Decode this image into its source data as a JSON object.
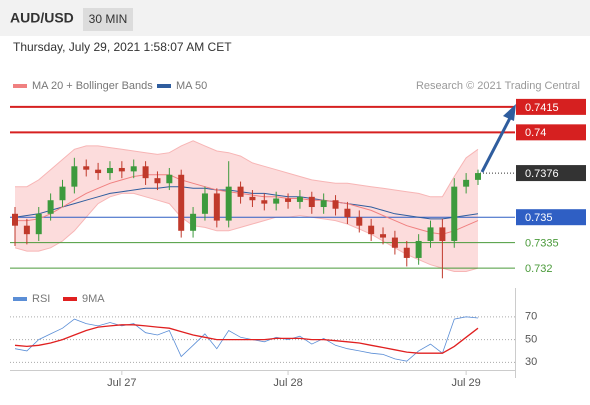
{
  "chart_data": {
    "type": "candlestick",
    "symbol": "AUD/USD",
    "timeframe": "30 MIN",
    "timestamp": "Thursday, July 29, 2021 1:58:07 AM CET",
    "credit": "Research © 2021 Trading Central",
    "ylim": [
      0.7313,
      0.7422
    ],
    "up_color": "#3d9a3d",
    "down_color": "#c0392b",
    "categories": [
      null,
      null,
      null,
      null,
      null,
      null,
      null,
      null,
      null,
      "Jul 27",
      null,
      null,
      null,
      null,
      null,
      null,
      null,
      null,
      null,
      null,
      null,
      null,
      null,
      "Jul 28",
      null,
      null,
      null,
      null,
      null,
      null,
      null,
      null,
      null,
      null,
      null,
      null,
      null,
      null,
      "Jul 29",
      null
    ],
    "open": [
      0.7352,
      0.7345,
      0.734,
      0.7352,
      0.736,
      0.7368,
      0.738,
      0.7378,
      0.7376,
      0.7379,
      0.7377,
      0.738,
      0.7373,
      0.737,
      0.7375,
      0.7342,
      0.7352,
      0.7364,
      0.7348,
      0.7368,
      0.7362,
      0.736,
      0.7358,
      0.7361,
      0.7359,
      0.7362,
      0.7356,
      0.736,
      0.7355,
      0.735,
      0.7345,
      0.734,
      0.7338,
      0.7332,
      0.7326,
      0.7336,
      0.7344,
      0.7336,
      0.7368,
      0.7372
    ],
    "high": [
      0.7356,
      0.7349,
      0.7356,
      0.7364,
      0.7372,
      0.7385,
      0.7384,
      0.7382,
      0.7383,
      0.7383,
      0.7384,
      0.7383,
      0.7377,
      0.7379,
      0.7378,
      0.7356,
      0.7368,
      0.7367,
      0.7383,
      0.7371,
      0.7366,
      0.7364,
      0.7365,
      0.7364,
      0.7366,
      0.7365,
      0.7364,
      0.7363,
      0.7359,
      0.7354,
      0.7349,
      0.7344,
      0.7342,
      0.7336,
      0.734,
      0.7348,
      0.7349,
      0.7373,
      0.7376,
      0.7378
    ],
    "low": [
      0.7333,
      0.7334,
      0.7336,
      0.7348,
      0.7356,
      0.7364,
      0.7374,
      0.7372,
      0.7372,
      0.7373,
      0.7373,
      0.7369,
      0.7366,
      0.7366,
      0.7338,
      0.7338,
      0.7348,
      0.7344,
      0.7344,
      0.7358,
      0.7356,
      0.7354,
      0.7354,
      0.7355,
      0.7355,
      0.7352,
      0.7352,
      0.7351,
      0.7346,
      0.7341,
      0.7336,
      0.7334,
      0.7328,
      0.7321,
      0.7322,
      0.7332,
      0.7314,
      0.7332,
      0.7364,
      0.7369
    ],
    "close": [
      0.7345,
      0.734,
      0.7352,
      0.736,
      0.7368,
      0.738,
      0.7378,
      0.7376,
      0.7379,
      0.7377,
      0.738,
      0.7373,
      0.737,
      0.7375,
      0.7342,
      0.7352,
      0.7364,
      0.7348,
      0.7368,
      0.7362,
      0.736,
      0.7358,
      0.7361,
      0.7359,
      0.7362,
      0.7356,
      0.736,
      0.7355,
      0.735,
      0.7345,
      0.734,
      0.7338,
      0.7332,
      0.7326,
      0.7336,
      0.7344,
      0.7336,
      0.7368,
      0.7372,
      0.7376
    ],
    "ma20": {
      "name": "MA 20 + Bollinger Bands",
      "color": "#f08080",
      "band_color": "#fcdcdc",
      "values": [
        0.7348,
        0.7348,
        0.7349,
        0.7352,
        0.7356,
        0.736,
        0.7364,
        0.7367,
        0.737,
        0.7372,
        0.7374,
        0.7375,
        0.7375,
        0.7375,
        0.7372,
        0.737,
        0.7368,
        0.7366,
        0.7365,
        0.7364,
        0.7363,
        0.7362,
        0.7362,
        0.7361,
        0.7361,
        0.736,
        0.736,
        0.7359,
        0.7358,
        0.7356,
        0.7354,
        0.7351,
        0.7348,
        0.7345,
        0.7343,
        0.7341,
        0.734,
        0.7342,
        0.7345,
        0.7348
      ],
      "upper": [
        0.7368,
        0.7368,
        0.7372,
        0.7378,
        0.7384,
        0.739,
        0.7392,
        0.7392,
        0.7391,
        0.739,
        0.7389,
        0.7388,
        0.7387,
        0.7388,
        0.7392,
        0.7395,
        0.7392,
        0.7389,
        0.7388,
        0.7386,
        0.7382,
        0.738,
        0.7378,
        0.7376,
        0.7374,
        0.7372,
        0.7371,
        0.737,
        0.737,
        0.7369,
        0.7368,
        0.7367,
        0.7366,
        0.7365,
        0.7364,
        0.7362,
        0.7362,
        0.7374,
        0.7385,
        0.739
      ],
      "lower": [
        0.7332,
        0.733,
        0.733,
        0.7332,
        0.7336,
        0.7342,
        0.735,
        0.7358,
        0.7362,
        0.7364,
        0.7364,
        0.7362,
        0.736,
        0.7358,
        0.735,
        0.7345,
        0.7344,
        0.7342,
        0.7342,
        0.7344,
        0.7346,
        0.7348,
        0.735,
        0.735,
        0.7351,
        0.735,
        0.7349,
        0.7348,
        0.7346,
        0.7343,
        0.734,
        0.7336,
        0.7332,
        0.7328,
        0.7325,
        0.7322,
        0.732,
        0.7318,
        0.7318,
        0.732
      ]
    },
    "ma50": {
      "name": "MA 50",
      "color": "#2f5d9e",
      "values": [
        0.735,
        0.7351,
        0.7352,
        0.7354,
        0.7356,
        0.7358,
        0.736,
        0.7362,
        0.7364,
        0.7365,
        0.7366,
        0.7367,
        0.7367,
        0.7368,
        0.7368,
        0.7367,
        0.7367,
        0.7366,
        0.7366,
        0.7365,
        0.7364,
        0.7364,
        0.7363,
        0.7362,
        0.7362,
        0.7361,
        0.736,
        0.7359,
        0.7358,
        0.7357,
        0.7356,
        0.7354,
        0.7352,
        0.7351,
        0.735,
        0.7349,
        0.7349,
        0.735,
        0.7351,
        0.7352
      ]
    },
    "levels": [
      {
        "value": 0.7415,
        "color": "#d62020",
        "style": "solid",
        "box": true
      },
      {
        "value": 0.74,
        "color": "#d62020",
        "style": "solid",
        "box": true
      },
      {
        "value": 0.7376,
        "color": "#333333",
        "style": "dotted",
        "box": true
      },
      {
        "value": 0.735,
        "color": "#2f5fc4",
        "style": "solid",
        "box": true
      },
      {
        "value": 0.7335,
        "color": "#4a9a3a",
        "style": "solid",
        "box": false
      },
      {
        "value": 0.732,
        "color": "#4a9a3a",
        "style": "solid",
        "box": false
      }
    ],
    "rsi": {
      "ylim": [
        25,
        76
      ],
      "yticks": [
        70,
        50,
        30
      ],
      "series": [
        {
          "name": "RSI",
          "color": "#5b8ed6",
          "values": [
            42,
            40,
            50,
            55,
            60,
            68,
            64,
            62,
            65,
            62,
            64,
            56,
            54,
            58,
            35,
            45,
            55,
            42,
            58,
            52,
            50,
            48,
            52,
            50,
            53,
            46,
            51,
            45,
            42,
            40,
            38,
            37,
            33,
            31,
            40,
            46,
            38,
            68,
            70,
            69
          ]
        },
        {
          "name": "9MA",
          "color": "#e02020",
          "values": [
            45,
            44,
            45,
            47,
            50,
            54,
            58,
            61,
            62,
            63,
            63,
            62,
            61,
            60,
            57,
            54,
            52,
            50,
            50,
            50,
            50,
            50,
            51,
            51,
            51,
            50,
            50,
            49,
            48,
            47,
            45,
            43,
            41,
            39,
            38,
            38,
            38,
            44,
            52,
            60
          ]
        }
      ]
    }
  }
}
